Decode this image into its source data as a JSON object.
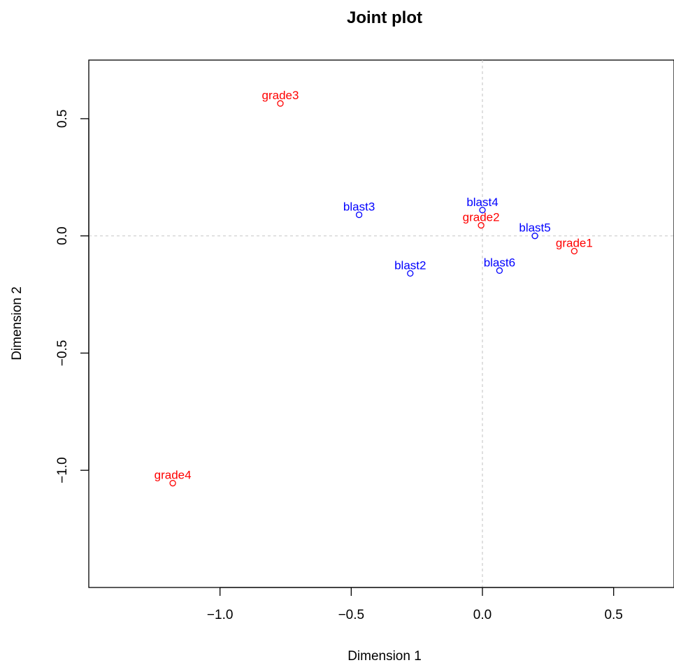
{
  "chart_data": {
    "type": "scatter",
    "title": "Joint plot",
    "xlabel": "Dimension 1",
    "ylabel": "Dimension 2",
    "xlim": [
      -1.5,
      0.73
    ],
    "ylim": [
      -1.5,
      0.75
    ],
    "xticks": [
      -1.0,
      -0.5,
      0.0,
      0.5
    ],
    "xtick_labels": [
      "−1.0",
      "−0.5",
      "0.0",
      "0.5"
    ],
    "yticks": [
      -1.0,
      -0.5,
      0.0,
      0.5
    ],
    "ytick_labels": [
      "−1.0",
      "−0.5",
      "0.0",
      "0.5"
    ],
    "reference_lines": {
      "x": 0,
      "y": 0,
      "style": "dashed",
      "color": "#cccccc"
    },
    "grid": false,
    "series": [
      {
        "color": "#ff0000",
        "points": [
          {
            "label": "grade1",
            "x": 0.35,
            "y": -0.065
          },
          {
            "label": "grade2",
            "x": -0.005,
            "y": 0.045
          },
          {
            "label": "grade3",
            "x": -0.77,
            "y": 0.565
          },
          {
            "label": "grade4",
            "x": -1.18,
            "y": -1.055
          }
        ]
      },
      {
        "color": "#0000ff",
        "points": [
          {
            "label": "blast2",
            "x": -0.275,
            "y": -0.16
          },
          {
            "label": "blast3",
            "x": -0.47,
            "y": 0.09
          },
          {
            "label": "blast4",
            "x": 0.0,
            "y": 0.11
          },
          {
            "label": "blast5",
            "x": 0.2,
            "y": 0.0
          },
          {
            "label": "blast6",
            "x": 0.065,
            "y": -0.148
          }
        ]
      }
    ]
  }
}
